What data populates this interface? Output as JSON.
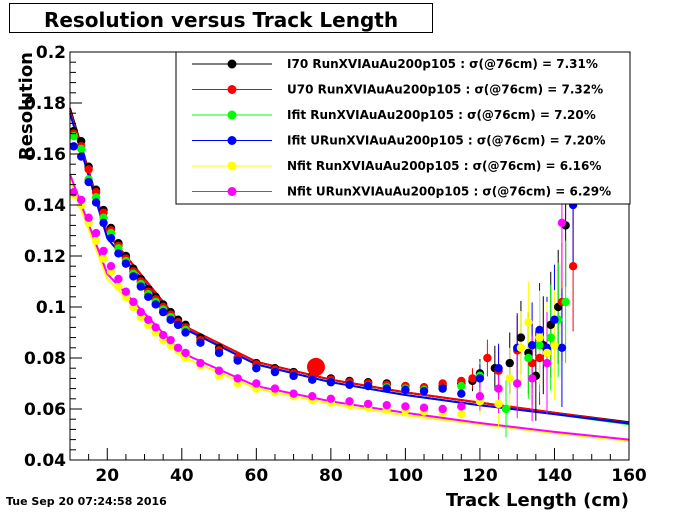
{
  "header": {
    "title": "Resolution versus Track Length"
  },
  "footer": {
    "timestamp": "Tue Sep 20 07:24:58 2016"
  },
  "chart_data": {
    "type": "scatter",
    "title": "Resolution versus Track Length",
    "xlabel": "Track Length (cm)",
    "ylabel": "Resolution",
    "xlim": [
      10,
      160
    ],
    "ylim": [
      0.04,
      0.2
    ],
    "xticks": [
      20,
      40,
      60,
      80,
      100,
      120,
      140,
      160
    ],
    "yticks": [
      0.04,
      0.06,
      0.08,
      0.1,
      0.12,
      0.14,
      0.16,
      0.18,
      0.2
    ],
    "ytick_labels": [
      "0.04",
      "0.06",
      "0.08",
      "0.1",
      "0.12",
      "0.14",
      "0.16",
      "0.18",
      "0.2"
    ],
    "legend_position": "top-right",
    "grid": false,
    "highlight_point": {
      "x": 76,
      "y": 0.0765,
      "color": "#ff0000"
    },
    "series": [
      {
        "name": "I70  RunXVIAuAu200p105 : σ(@76cm) =  7.31%",
        "color": "#000000",
        "x": [
          11,
          13,
          15,
          17,
          19,
          21,
          23,
          25,
          27,
          29,
          31,
          33,
          35,
          37,
          39,
          41,
          45,
          50,
          55,
          60,
          65,
          70,
          75,
          80,
          85,
          90,
          95,
          100,
          105,
          110,
          115,
          118,
          120,
          124,
          128,
          131,
          133,
          135,
          137,
          139,
          141,
          143
        ],
        "y": [
          0.169,
          0.165,
          0.155,
          0.146,
          0.138,
          0.131,
          0.125,
          0.12,
          0.115,
          0.111,
          0.107,
          0.104,
          0.101,
          0.098,
          0.095,
          0.093,
          0.088,
          0.084,
          0.08,
          0.078,
          0.076,
          0.0745,
          0.073,
          0.072,
          0.071,
          0.0705,
          0.07,
          0.069,
          0.0685,
          0.069,
          0.07,
          0.071,
          0.074,
          0.076,
          0.078,
          0.088,
          0.082,
          0.073,
          0.085,
          0.093,
          0.1,
          0.132
        ],
        "fit": [
          [
            10,
            0.178
          ],
          [
            20,
            0.129
          ],
          [
            40,
            0.093
          ],
          [
            60,
            0.0785
          ],
          [
            80,
            0.0715
          ],
          [
            100,
            0.0665
          ],
          [
            120,
            0.0625
          ],
          [
            140,
            0.0585
          ],
          [
            160,
            0.0548
          ]
        ]
      },
      {
        "name": "U70  RunXVIAuAu200p105 : σ(@76cm) =  7.32%",
        "color": "#ff0000",
        "x": [
          11,
          13,
          15,
          17,
          19,
          21,
          23,
          25,
          27,
          29,
          31,
          33,
          35,
          37,
          39,
          41,
          45,
          50,
          55,
          60,
          65,
          70,
          75,
          80,
          85,
          90,
          95,
          100,
          105,
          110,
          115,
          118,
          122,
          125,
          130,
          134,
          136,
          138,
          142,
          145
        ],
        "y": [
          0.168,
          0.163,
          0.154,
          0.145,
          0.137,
          0.13,
          0.124,
          0.119,
          0.114,
          0.11,
          0.106,
          0.103,
          0.1,
          0.097,
          0.094,
          0.092,
          0.087,
          0.083,
          0.08,
          0.0775,
          0.0755,
          0.074,
          0.0725,
          0.0715,
          0.0705,
          0.07,
          0.0695,
          0.069,
          0.0685,
          0.07,
          0.071,
          0.072,
          0.08,
          0.075,
          0.083,
          0.078,
          0.08,
          0.082,
          0.102,
          0.116
        ],
        "fit": [
          [
            10,
            0.177
          ],
          [
            20,
            0.129
          ],
          [
            40,
            0.093
          ],
          [
            60,
            0.0785
          ],
          [
            80,
            0.0715
          ],
          [
            100,
            0.0665
          ],
          [
            120,
            0.0625
          ],
          [
            140,
            0.0585
          ],
          [
            160,
            0.0545
          ]
        ]
      },
      {
        "name": "Ifit RunXVIAuAu200p105 : σ(@76cm) =  7.20%",
        "color": "#00ff00",
        "x": [
          11,
          13,
          15,
          17,
          19,
          21,
          23,
          25,
          27,
          29,
          31,
          33,
          35,
          37,
          39,
          41,
          45,
          50,
          55,
          60,
          65,
          70,
          75,
          80,
          85,
          90,
          95,
          100,
          105,
          110,
          115,
          120,
          127,
          133,
          136,
          139,
          141,
          143
        ],
        "y": [
          0.167,
          0.162,
          0.15,
          0.143,
          0.135,
          0.129,
          0.123,
          0.118,
          0.113,
          0.109,
          0.105,
          0.102,
          0.099,
          0.096,
          0.093,
          0.091,
          0.086,
          0.082,
          0.079,
          0.076,
          0.0745,
          0.073,
          0.0715,
          0.0705,
          0.0695,
          0.069,
          0.0685,
          0.068,
          0.0675,
          0.068,
          0.069,
          0.073,
          0.06,
          0.08,
          0.085,
          0.088,
          0.095,
          0.102
        ],
        "fit": [
          [
            10,
            0.176
          ],
          [
            20,
            0.127
          ],
          [
            40,
            0.092
          ],
          [
            60,
            0.0775
          ],
          [
            80,
            0.0705
          ],
          [
            100,
            0.0655
          ],
          [
            120,
            0.0615
          ],
          [
            140,
            0.058
          ],
          [
            160,
            0.054
          ]
        ]
      },
      {
        "name": "Ifit URunXVIAuAu200p105 : σ(@76cm) =  7.20%",
        "color": "#0000ff",
        "x": [
          11,
          13,
          15,
          17,
          19,
          21,
          23,
          25,
          27,
          29,
          31,
          33,
          35,
          37,
          39,
          41,
          45,
          50,
          55,
          60,
          65,
          70,
          75,
          80,
          85,
          90,
          95,
          100,
          105,
          110,
          115,
          120,
          125,
          130,
          134,
          136,
          138,
          140,
          142,
          145
        ],
        "y": [
          0.163,
          0.159,
          0.149,
          0.141,
          0.133,
          0.127,
          0.121,
          0.117,
          0.112,
          0.108,
          0.104,
          0.101,
          0.098,
          0.095,
          0.093,
          0.09,
          0.086,
          0.082,
          0.079,
          0.076,
          0.0745,
          0.073,
          0.0715,
          0.0705,
          0.0695,
          0.069,
          0.068,
          0.0675,
          0.067,
          0.068,
          0.066,
          0.072,
          0.076,
          0.084,
          0.085,
          0.091,
          0.084,
          0.095,
          0.084,
          0.14
        ],
        "fit": [
          [
            10,
            0.176
          ],
          [
            20,
            0.127
          ],
          [
            40,
            0.092
          ],
          [
            60,
            0.0775
          ],
          [
            80,
            0.0705
          ],
          [
            100,
            0.0655
          ],
          [
            120,
            0.0615
          ],
          [
            140,
            0.058
          ],
          [
            160,
            0.0543
          ]
        ]
      },
      {
        "name": "Nfit RunXVIAuAu200p105 : σ(@76cm) =  6.16%",
        "color": "#ffff00",
        "x": [
          11,
          13,
          15,
          17,
          19,
          21,
          23,
          25,
          27,
          29,
          31,
          33,
          35,
          37,
          39,
          41,
          45,
          50,
          55,
          60,
          65,
          70,
          75,
          80,
          85,
          90,
          95,
          100,
          105,
          110,
          115,
          120,
          125,
          128,
          131,
          133,
          136,
          138,
          140
        ],
        "y": [
          0.144,
          0.14,
          0.133,
          0.126,
          0.119,
          0.114,
          0.108,
          0.104,
          0.1,
          0.096,
          0.093,
          0.09,
          0.087,
          0.085,
          0.083,
          0.08,
          0.077,
          0.073,
          0.07,
          0.068,
          0.0665,
          0.065,
          0.0635,
          0.0625,
          0.0615,
          0.0605,
          0.06,
          0.0595,
          0.059,
          0.0585,
          0.058,
          0.063,
          0.062,
          0.072,
          0.084,
          0.094,
          0.088,
          0.082,
          0.085
        ],
        "fit": [
          [
            10,
            0.15
          ],
          [
            20,
            0.111
          ],
          [
            40,
            0.0805
          ],
          [
            60,
            0.068
          ],
          [
            80,
            0.062
          ],
          [
            100,
            0.0575
          ],
          [
            120,
            0.054
          ],
          [
            140,
            0.0505
          ],
          [
            160,
            0.0475
          ]
        ]
      },
      {
        "name": "Nfit URunXVIAuAu200p105 : σ(@76cm) =  6.29%",
        "color": "#ff00ff",
        "x": [
          11,
          13,
          15,
          17,
          19,
          21,
          23,
          25,
          27,
          29,
          31,
          33,
          35,
          37,
          39,
          41,
          45,
          50,
          55,
          60,
          65,
          70,
          75,
          80,
          85,
          90,
          95,
          100,
          105,
          110,
          115,
          120,
          125,
          130,
          134,
          138,
          142
        ],
        "y": [
          0.145,
          0.142,
          0.135,
          0.129,
          0.122,
          0.116,
          0.111,
          0.106,
          0.102,
          0.098,
          0.095,
          0.092,
          0.089,
          0.087,
          0.084,
          0.082,
          0.078,
          0.075,
          0.072,
          0.07,
          0.068,
          0.066,
          0.065,
          0.064,
          0.063,
          0.062,
          0.0615,
          0.061,
          0.0605,
          0.06,
          0.061,
          0.065,
          0.068,
          0.07,
          0.072,
          0.078,
          0.133
        ],
        "fit": [
          [
            10,
            0.152
          ],
          [
            20,
            0.113
          ],
          [
            40,
            0.082
          ],
          [
            60,
            0.069
          ],
          [
            80,
            0.063
          ],
          [
            100,
            0.0585
          ],
          [
            120,
            0.0545
          ],
          [
            140,
            0.051
          ],
          [
            160,
            0.048
          ]
        ]
      }
    ]
  }
}
